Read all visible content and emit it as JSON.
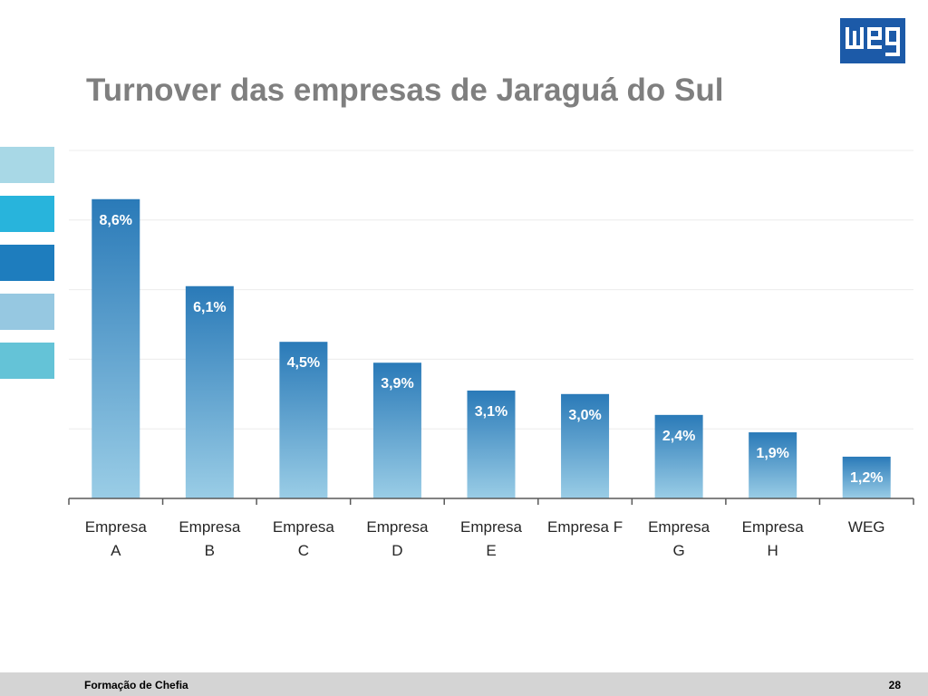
{
  "slide": {
    "title": "Turnover das empresas de Jaraguá do Sul",
    "logo_text": "weg",
    "brand_color": "#1c5aa8",
    "side_colors": [
      "#a8d8e6",
      "#28b4dc",
      "#1e7dbe",
      "#96c8e1",
      "#64c3d7"
    ]
  },
  "footer": {
    "left": "Formação de Chefia",
    "page": "28"
  },
  "chart_data": {
    "type": "bar",
    "title": "",
    "xlabel": "",
    "ylabel": "",
    "categories": [
      [
        "Empresa",
        "A"
      ],
      [
        "Empresa",
        "B"
      ],
      [
        "Empresa",
        "C"
      ],
      [
        "Empresa",
        "D"
      ],
      [
        "Empresa",
        "E"
      ],
      [
        "Empresa F"
      ],
      [
        "Empresa",
        "G"
      ],
      [
        "Empresa",
        "H"
      ],
      [
        "WEG"
      ]
    ],
    "values": [
      8.6,
      6.1,
      4.5,
      3.9,
      3.1,
      3.0,
      2.4,
      1.9,
      1.2
    ],
    "value_labels": [
      "8,6%",
      "6,1%",
      "4,5%",
      "3,9%",
      "3,1%",
      "3,0%",
      "2,4%",
      "1,9%",
      "1,2%"
    ],
    "ylim": [
      0,
      10
    ],
    "grid": true,
    "legend": "none",
    "bar_color_top": "#2a7ab8",
    "bar_color_bottom": "#9acde6"
  }
}
